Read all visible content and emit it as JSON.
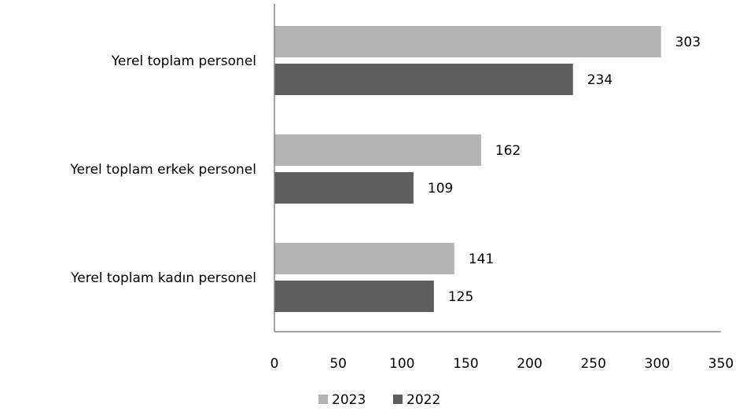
{
  "chart_data": {
    "type": "bar",
    "orientation": "horizontal",
    "categories": [
      "Yerel toplam personel",
      "Yerel toplam erkek personel",
      "Yerel toplam kadın personel"
    ],
    "series": [
      {
        "name": "2023",
        "values": [
          303,
          162,
          141
        ],
        "color": "#b3b3b3"
      },
      {
        "name": "2022",
        "values": [
          234,
          109,
          125
        ],
        "color": "#5e5e5e"
      }
    ],
    "xlim": [
      0,
      350
    ],
    "xticks": [
      "0",
      "50",
      "100",
      "150",
      "200",
      "250",
      "300",
      "350"
    ],
    "grid": false,
    "legend_position": "bottom"
  }
}
